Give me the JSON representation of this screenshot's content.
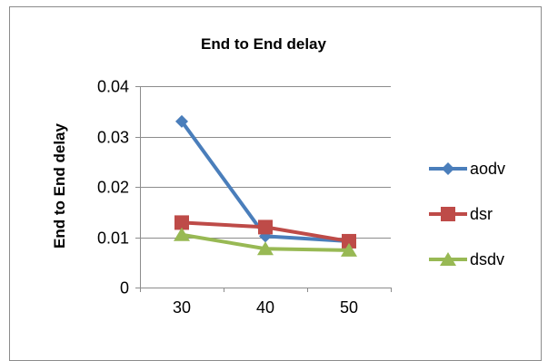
{
  "chart_data": {
    "type": "line",
    "title": "End to End delay",
    "xlabel": "",
    "ylabel": "End to End delay",
    "categories": [
      "30",
      "40",
      "50"
    ],
    "ylim": [
      0,
      0.04
    ],
    "yticks": [
      "0",
      "0.01",
      "0.02",
      "0.03",
      "0.04"
    ],
    "grid": true,
    "legend_position": "right",
    "series": [
      {
        "name": "aodv",
        "values": [
          0.033,
          0.0102,
          0.0092
        ],
        "color": "#4a7ebb",
        "marker": "diamond"
      },
      {
        "name": "dsr",
        "values": [
          0.0129,
          0.012,
          0.0092
        ],
        "color": "#be4b48",
        "marker": "square"
      },
      {
        "name": "dsdv",
        "values": [
          0.0105,
          0.0077,
          0.0074
        ],
        "color": "#98b954",
        "marker": "triangle"
      }
    ]
  }
}
